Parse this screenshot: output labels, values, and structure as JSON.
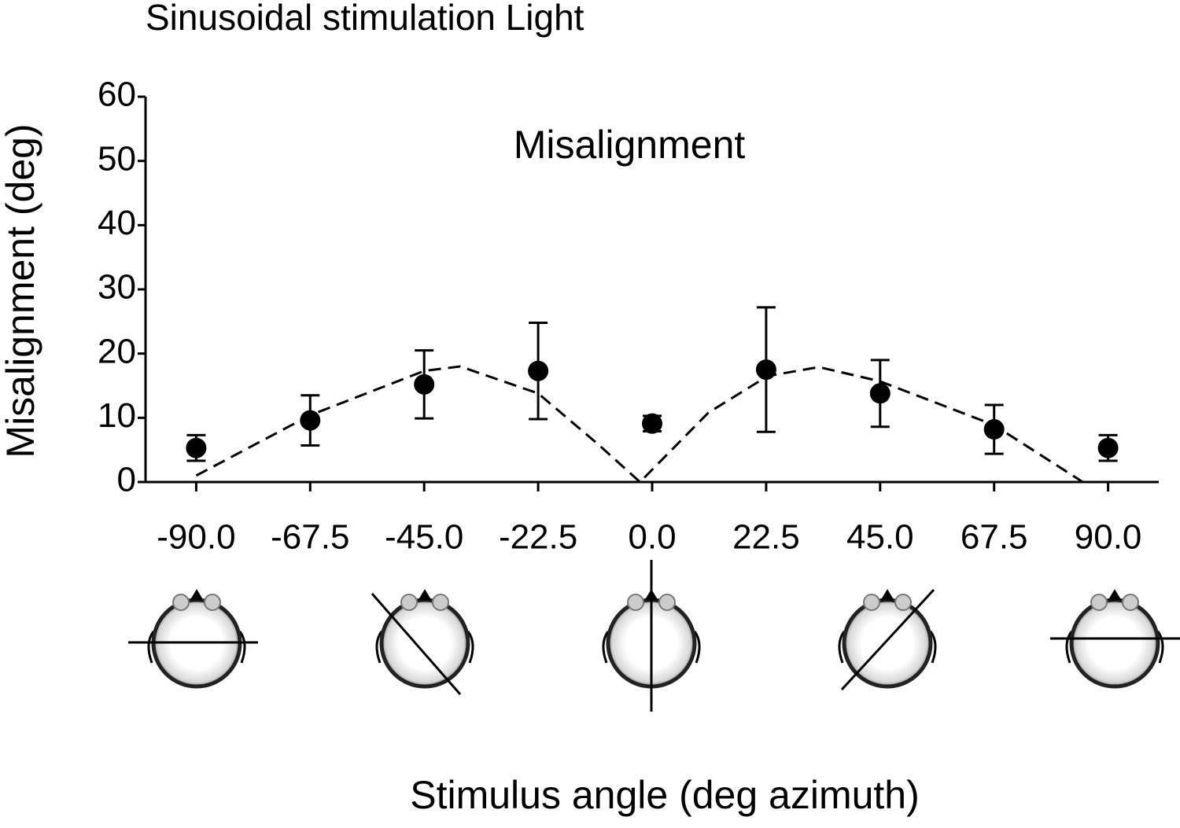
{
  "chart_data": {
    "type": "scatter",
    "title": "Sinusoidal stimulation Light",
    "annotation": "Misalignment",
    "y_label": "Misalignment (deg)",
    "x_label": "Stimulus angle (deg azimuth)",
    "xlim": [
      -100,
      100
    ],
    "ylim": [
      0,
      60
    ],
    "xticks": [
      {
        "value": -90,
        "label": "-90.0"
      },
      -67.5,
      {
        "value": -45,
        "label": "-45.0"
      },
      -22.5,
      {
        "value": 0,
        "label": "0.0"
      },
      22.5,
      {
        "value": 45,
        "label": "45.0"
      },
      67.5,
      {
        "value": 90,
        "label": "90.0"
      }
    ],
    "yticks": [
      0,
      10,
      20,
      30,
      40,
      50,
      60
    ],
    "series": [
      {
        "color": "#000000",
        "x": [
          -90,
          -67.5,
          -45,
          -22.5,
          0,
          22.5,
          45,
          67.5,
          90
        ],
        "values": [
          5.3,
          9.6,
          15.2,
          17.3,
          9.1,
          17.5,
          13.8,
          8.2,
          5.3
        ],
        "errors": [
          2,
          3.9,
          5.3,
          7.5,
          1.2,
          9.7,
          5.2,
          3.8,
          2
        ]
      }
    ],
    "curve": {
      "color": "#000000",
      "dashed": true,
      "x": [
        -90,
        -67.5,
        -45,
        -37.9,
        -22.5,
        -10.7,
        -2.4,
        11.1,
        22.8,
        32.9,
        44.9,
        67.4,
        85
      ],
      "values": [
        1,
        10.4,
        17.3,
        18,
        13.8,
        5.9,
        0,
        10.8,
        16.5,
        17.9,
        15.7,
        8.9,
        0
      ]
    }
  }
}
